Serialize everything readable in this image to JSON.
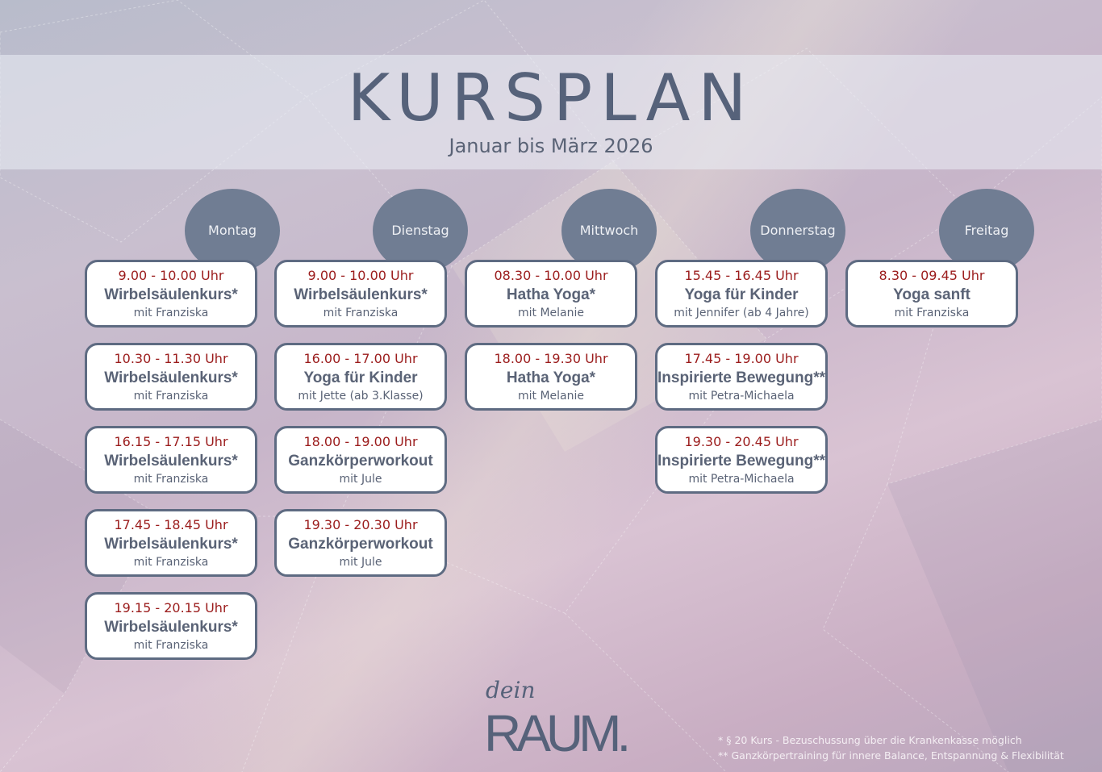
{
  "header": {
    "title": "KURSPLAN",
    "subtitle": "Januar bis März 2026"
  },
  "colors": {
    "day_circle": "#707d93",
    "time": "#9b1c1c",
    "text": "#5a6376",
    "border": "#5e6b82"
  },
  "days": [
    {
      "name": "Montag",
      "courses": [
        {
          "time": "9.00 - 10.00 Uhr",
          "course": "Wirbelsäulenkurs*",
          "trainer": "mit Franziska"
        },
        {
          "time": "10.30 - 11.30 Uhr",
          "course": "Wirbelsäulenkurs*",
          "trainer": "mit Franziska"
        },
        {
          "time": "16.15 - 17.15 Uhr",
          "course": "Wirbelsäulenkurs*",
          "trainer": "mit Franziska"
        },
        {
          "time": "17.45 - 18.45 Uhr",
          "course": "Wirbelsäulenkurs*",
          "trainer": "mit Franziska"
        },
        {
          "time": "19.15 - 20.15 Uhr",
          "course": "Wirbelsäulenkurs*",
          "trainer": "mit Franziska"
        }
      ]
    },
    {
      "name": "Dienstag",
      "courses": [
        {
          "time": "9.00 - 10.00 Uhr",
          "course": "Wirbelsäulenkurs*",
          "trainer": "mit Franziska"
        },
        {
          "time": "16.00 - 17.00 Uhr",
          "course": "Yoga für Kinder",
          "trainer": "mit Jette (ab 3.Klasse)"
        },
        {
          "time": "18.00 - 19.00 Uhr",
          "course": "Ganzkörperworkout",
          "trainer": "mit Jule"
        },
        {
          "time": "19.30 - 20.30 Uhr",
          "course": "Ganzkörperworkout",
          "trainer": "mit Jule"
        }
      ]
    },
    {
      "name": "Mittwoch",
      "courses": [
        {
          "time": "08.30 - 10.00 Uhr",
          "course": "Hatha Yoga*",
          "trainer": "mit Melanie"
        },
        {
          "time": "18.00 - 19.30 Uhr",
          "course": "Hatha Yoga*",
          "trainer": "mit Melanie"
        }
      ]
    },
    {
      "name": "Donnerstag",
      "courses": [
        {
          "time": "15.45 - 16.45 Uhr",
          "course": "Yoga für Kinder",
          "trainer": "mit Jennifer (ab 4 Jahre)"
        },
        {
          "time": "17.45 - 19.00 Uhr",
          "course": "Inspirierte Bewegung**",
          "trainer": "mit Petra-Michaela"
        },
        {
          "time": "19.30 - 20.45 Uhr",
          "course": "Inspirierte Bewegung**",
          "trainer": "mit Petra-Michaela"
        }
      ]
    },
    {
      "name": "Freitag",
      "courses": [
        {
          "time": "8.30 - 09.45 Uhr",
          "course": "Yoga sanft",
          "trainer": "mit Franziska"
        }
      ]
    }
  ],
  "logo": {
    "line1": "dein",
    "line2": "RAUM."
  },
  "footnotes": [
    "* § 20 Kurs - Bezuschussung über die Krankenkasse möglich",
    "** Ganzkörpertraining für innere Balance, Entspannung & Flexibilität"
  ]
}
